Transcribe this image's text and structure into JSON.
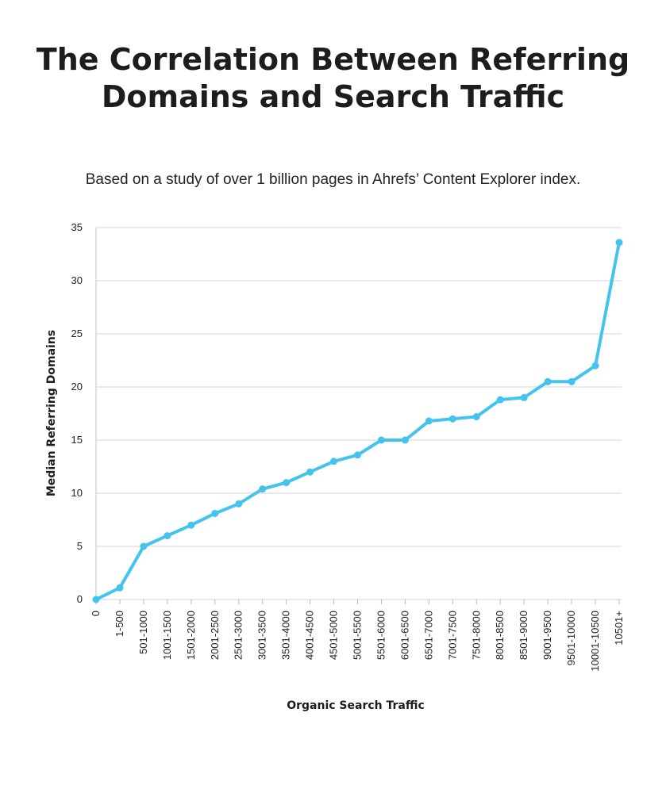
{
  "chart_data": {
    "type": "line",
    "title": "The Correlation Between Referring Domains and Search Traffic",
    "subtitle": "Based on a study of over 1 billion pages in Ahrefs’ Content Explorer index.",
    "xlabel": "Organic Search Traffic",
    "ylabel": "Median Referring Domains",
    "ylim": [
      0,
      35
    ],
    "yticks": [
      0,
      5,
      10,
      15,
      20,
      25,
      30,
      35
    ],
    "grid": true,
    "categories": [
      "0",
      "1-500",
      "501-1000",
      "1001-1500",
      "1501-2000",
      "2001-2500",
      "2501-3000",
      "3001-3500",
      "3501-4000",
      "4001-4500",
      "4501-5000",
      "5001-5500",
      "5501-6000",
      "6001-6500",
      "6501-7000",
      "7001-7500",
      "7501-8000",
      "8001-8500",
      "8501-9000",
      "9001-9500",
      "9501-10000",
      "10001-10500",
      "10501+"
    ],
    "series": [
      {
        "name": "Median Referring Domains",
        "color": "#45c3ef",
        "values": [
          0,
          1.1,
          5.0,
          6.0,
          7.0,
          8.1,
          9.0,
          10.4,
          11.0,
          12.0,
          13.0,
          13.6,
          15.0,
          15.0,
          16.8,
          17.0,
          17.2,
          18.8,
          19.0,
          20.5,
          20.5,
          22.0,
          33.6
        ]
      }
    ]
  }
}
